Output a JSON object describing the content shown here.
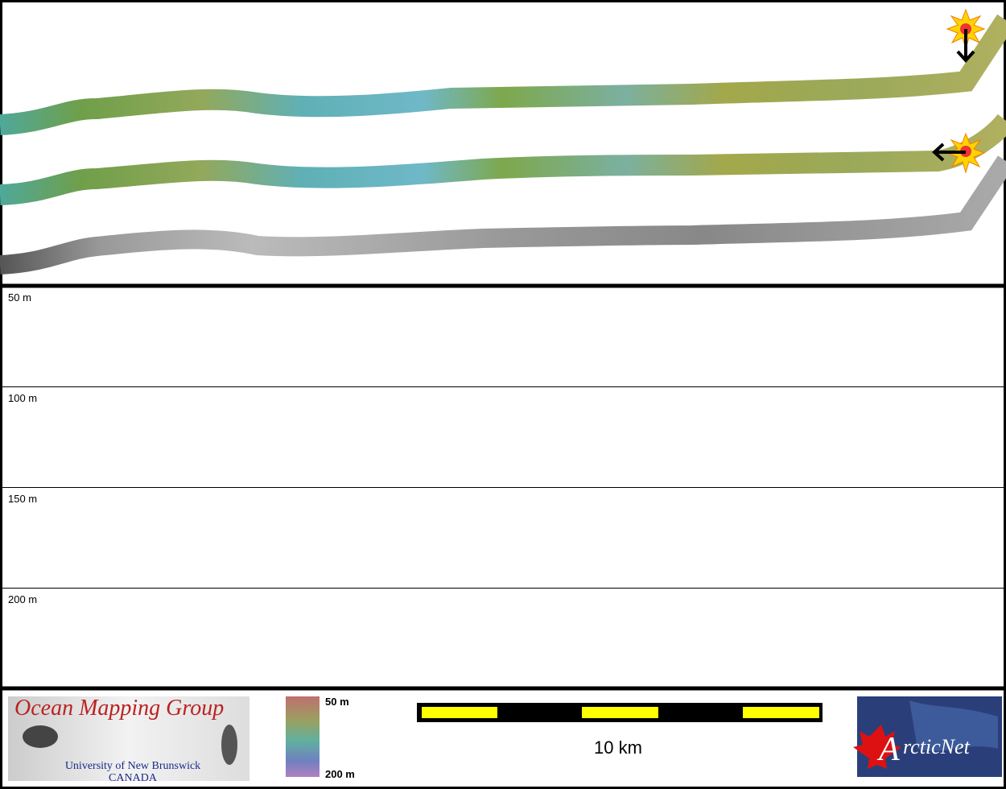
{
  "depth_panels": [
    {
      "label": "50 m"
    },
    {
      "label": "100 m"
    },
    {
      "label": "150 m"
    },
    {
      "label": "200 m"
    }
  ],
  "depth_legend": {
    "top": "50 m",
    "bottom": "200 m"
  },
  "scale_bar": {
    "label": "10 km"
  },
  "logos": {
    "omg": {
      "title": "Ocean Mapping Group",
      "line1": "University of New Brunswick",
      "line2": "CANADA"
    },
    "arcticnet": {
      "initial": "A",
      "rest": "rcticNet"
    }
  }
}
